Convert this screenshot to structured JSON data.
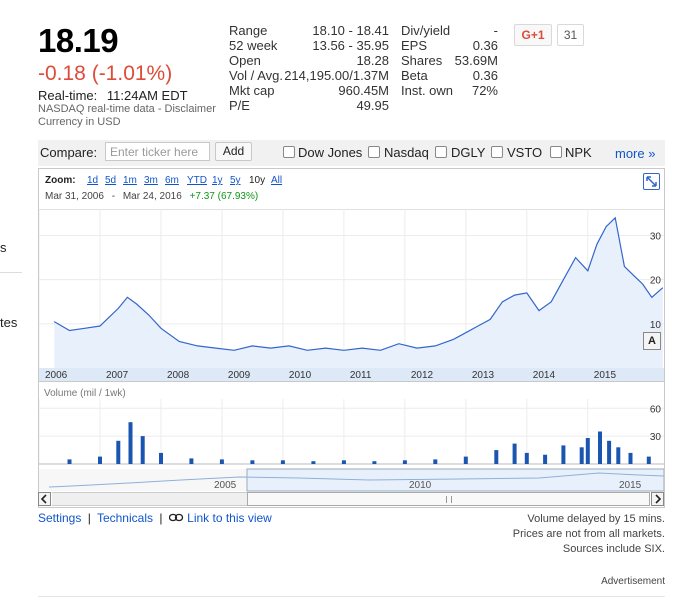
{
  "quote": {
    "price": "18.19",
    "change": "-0.18 (-1.01%)",
    "realtime_label": "Real-time:",
    "realtime_time": "11:24AM EDT",
    "source_note": "NASDAQ real-time data - Disclaimer",
    "currency_note": "Currency in USD"
  },
  "stats_left": [
    {
      "label": "Range",
      "value": "18.10 - 18.41"
    },
    {
      "label": "52 week",
      "value": "13.56 - 35.95"
    },
    {
      "label": "Open",
      "value": "18.28"
    },
    {
      "label": "Vol / Avg.",
      "value": "214,195.00/1.37M"
    },
    {
      "label": "Mkt cap",
      "value": "960.45M"
    },
    {
      "label": "P/E",
      "value": "49.95"
    }
  ],
  "stats_right": [
    {
      "label": "Div/yield",
      "value": "-"
    },
    {
      "label": "EPS",
      "value": "0.36"
    },
    {
      "label": "Shares",
      "value": "53.69M"
    },
    {
      "label": "Beta",
      "value": "0.36"
    },
    {
      "label": "Inst. own",
      "value": "72%"
    }
  ],
  "social": {
    "gplus_label": "G+1",
    "gplus_count": "31"
  },
  "compare": {
    "label": "Compare:",
    "placeholder": "Enter ticker here",
    "add_label": "Add",
    "options": [
      {
        "label": "Dow Jones",
        "checked": false
      },
      {
        "label": "Nasdaq",
        "checked": false
      },
      {
        "label": "DGLY",
        "checked": false
      },
      {
        "label": "VSTO",
        "checked": false
      },
      {
        "label": "NPK",
        "checked": false
      }
    ],
    "more_label": "more »"
  },
  "zoom": {
    "label": "Zoom:",
    "options": [
      "1d",
      "5d",
      "1m",
      "3m",
      "6m",
      "YTD",
      "1y",
      "5y",
      "10y",
      "All"
    ],
    "selected": "10y",
    "range_start": "Mar 31, 2006",
    "range_sep": "-",
    "range_end": "Mar 24, 2016",
    "range_change": "+7.37 (67.93%)"
  },
  "volume_label": "Volume (mil / 1wk)",
  "nav_years": [
    "2005",
    "2010",
    "2015"
  ],
  "links": {
    "settings": "Settings",
    "technicals": "Technicals",
    "link_view": "Link to this view",
    "sep": "|"
  },
  "footnotes": [
    "Volume delayed by 15 mins.",
    "Prices are not from all markets.",
    "Sources include SIX."
  ],
  "advertisement": "Advertisement",
  "left_fragments": [
    "s",
    "tes"
  ],
  "colors": {
    "accent": "#1155cc",
    "negative": "#dd4b39",
    "positive": "#109618",
    "price_line": "#3366cc",
    "area_fill": "#e8f1fb",
    "volume_bar": "#1a56b0"
  },
  "chart_data": {
    "type": "area",
    "x_ticks": [
      "2006",
      "2007",
      "2008",
      "2009",
      "2010",
      "2011",
      "2012",
      "2013",
      "2014",
      "2015"
    ],
    "y_ticks": [
      10,
      20,
      30
    ],
    "ylim": [
      0,
      36
    ],
    "price_series": {
      "x": [
        2006.25,
        2006.5,
        2006.75,
        2007.0,
        2007.15,
        2007.3,
        2007.45,
        2007.6,
        2007.8,
        2008.0,
        2008.3,
        2008.6,
        2008.9,
        2009.2,
        2009.5,
        2009.8,
        2010.1,
        2010.4,
        2010.7,
        2011.0,
        2011.3,
        2011.6,
        2011.9,
        2012.2,
        2012.5,
        2012.8,
        2013.0,
        2013.2,
        2013.4,
        2013.6,
        2013.8,
        2014.0,
        2014.2,
        2014.4,
        2014.6,
        2014.8,
        2015.0,
        2015.15,
        2015.3,
        2015.45,
        2015.6,
        2015.75,
        2015.9,
        2016.05,
        2016.23
      ],
      "y": [
        10.5,
        8.5,
        9.0,
        9.5,
        11.5,
        13.5,
        16.0,
        14.5,
        12.0,
        9.0,
        6.0,
        5.0,
        4.5,
        4.0,
        5.0,
        4.5,
        5.0,
        4.0,
        4.5,
        4.0,
        4.5,
        4.0,
        5.5,
        4.5,
        5.0,
        6.5,
        8.0,
        9.5,
        11.0,
        15.0,
        16.5,
        17.0,
        13.0,
        15.0,
        20.0,
        25.0,
        22.0,
        28.0,
        32.0,
        34.0,
        23.0,
        21.0,
        19.0,
        16.0,
        18.19
      ]
    },
    "volume": {
      "label": "Volume (mil / 1wk)",
      "y_ticks": [
        30,
        60
      ],
      "ylim": [
        0,
        70
      ],
      "x": [
        2006.5,
        2007.0,
        2007.3,
        2007.5,
        2007.7,
        2008.0,
        2008.5,
        2009.0,
        2009.5,
        2010.0,
        2010.5,
        2011.0,
        2011.5,
        2012.0,
        2012.5,
        2013.0,
        2013.5,
        2013.8,
        2014.0,
        2014.3,
        2014.6,
        2014.9,
        2015.0,
        2015.2,
        2015.35,
        2015.5,
        2015.7,
        2016.0
      ],
      "values": [
        5,
        8,
        25,
        45,
        30,
        12,
        6,
        5,
        4,
        4,
        3,
        4,
        3,
        4,
        5,
        8,
        15,
        22,
        12,
        10,
        20,
        18,
        28,
        35,
        25,
        18,
        12,
        8
      ]
    }
  }
}
